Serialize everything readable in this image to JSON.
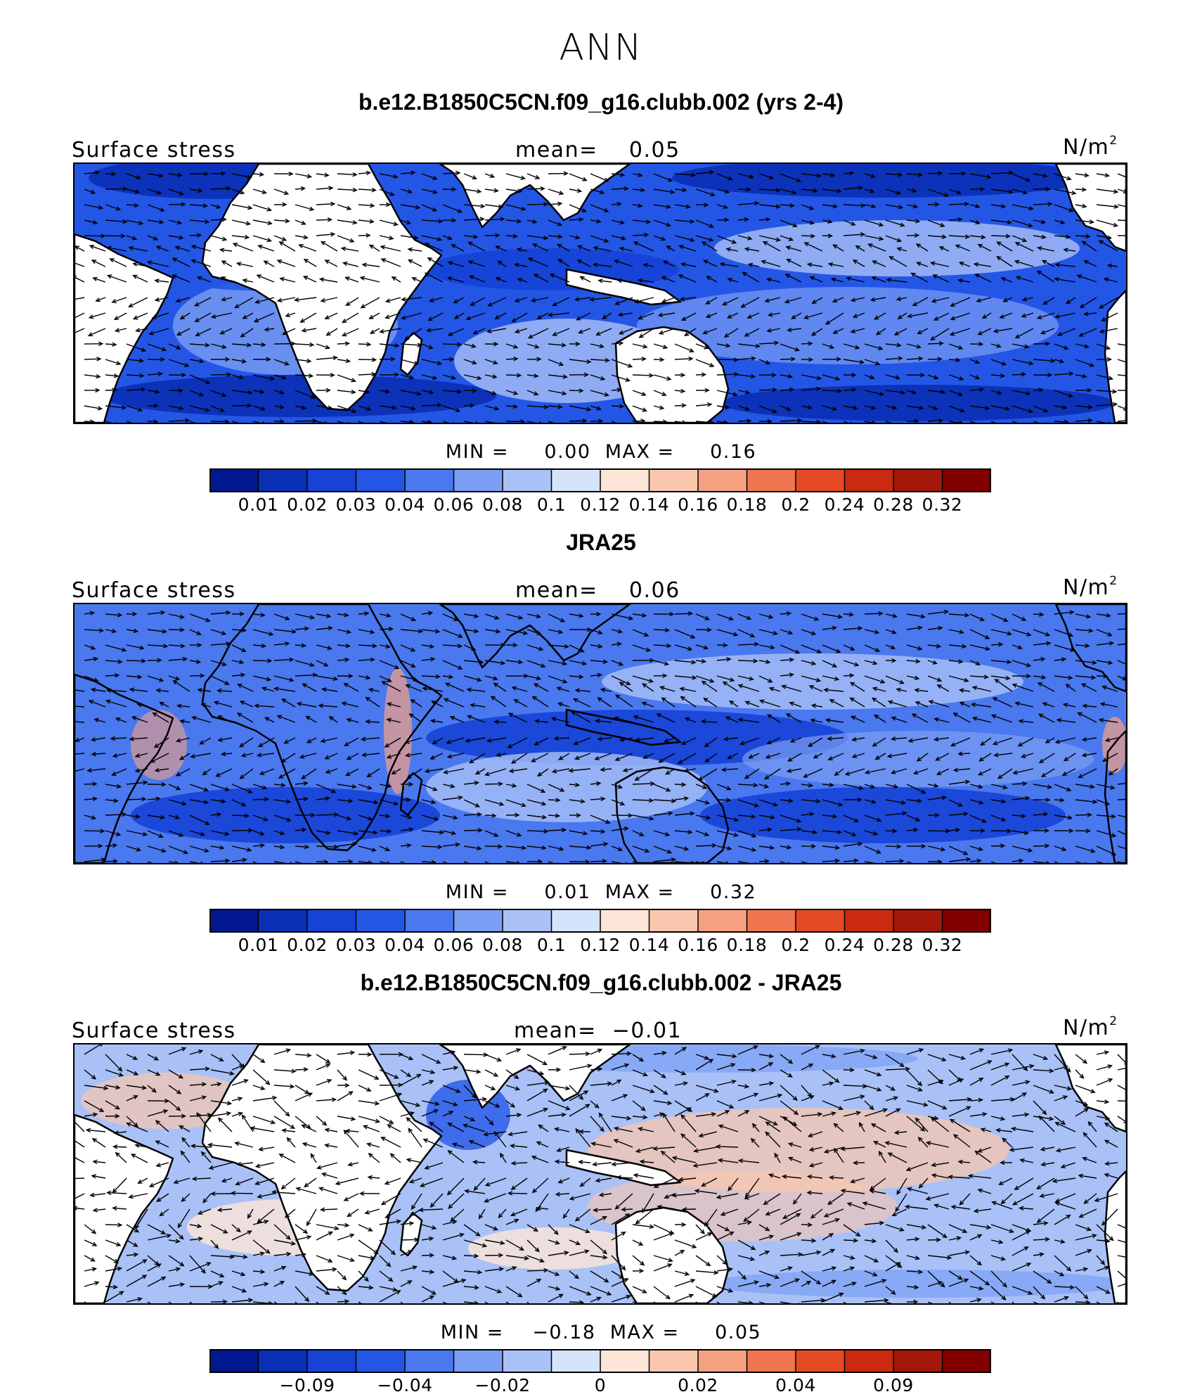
{
  "figure": {
    "title": "ANN"
  },
  "panels": [
    {
      "title": "b.e12.B1850C5CN.f09_g16.clubb.002 (yrs 2-4)",
      "variable": "Surface stress",
      "mean_label": "mean=    0.05",
      "units": "N/m",
      "units_sup": "2",
      "min_label": "MIN =",
      "min_value": "0.00",
      "max_label": "MAX =",
      "max_value": "0.16",
      "colorbar_labels": [
        "0.01",
        "0.02",
        "0.03",
        "0.04",
        "0.06",
        "0.08",
        "0.1",
        "0.12",
        "0.14",
        "0.16",
        "0.18",
        "0.2",
        "0.24",
        "0.28",
        "0.32"
      ]
    },
    {
      "title": "JRA25",
      "variable": "Surface stress",
      "mean_label": "mean=    0.06",
      "units": "N/m",
      "units_sup": "2",
      "min_label": "MIN =",
      "min_value": "0.01",
      "max_label": "MAX =",
      "max_value": "0.32",
      "colorbar_labels": [
        "0.01",
        "0.02",
        "0.03",
        "0.04",
        "0.06",
        "0.08",
        "0.1",
        "0.12",
        "0.14",
        "0.16",
        "0.18",
        "0.2",
        "0.24",
        "0.28",
        "0.32"
      ]
    },
    {
      "title": "b.e12.B1850C5CN.f09_g16.clubb.002 - JRA25",
      "variable": "Surface stress",
      "mean_label": "mean=  −0.01",
      "units": "N/m",
      "units_sup": "2",
      "min_label": "MIN =",
      "min_value": "−0.18",
      "max_label": "MAX =",
      "max_value": "0.05",
      "colorbar_labels": [
        "−0.09",
        "−0.04",
        "−0.02",
        "0",
        "0.02",
        "0.04",
        "0.09"
      ]
    }
  ],
  "chart_data": [
    {
      "type": "heatmap",
      "title": "b.e12.B1850C5CN.f09_g16.clubb.002 (yrs 2-4)",
      "variable": "Surface stress",
      "units": "N/m2",
      "mean": 0.05,
      "min": 0.0,
      "max": 0.16,
      "colorbar_levels": [
        0.01,
        0.02,
        0.03,
        0.04,
        0.06,
        0.08,
        0.1,
        0.12,
        0.14,
        0.16,
        0.18,
        0.2,
        0.24,
        0.28,
        0.32
      ],
      "colors": [
        "#00178f",
        "#0a2fb4",
        "#1642d6",
        "#2456e6",
        "#4a78ee",
        "#7a9ef4",
        "#a9c1f7",
        "#d5e4fb",
        "#fde6d7",
        "#fac6ae",
        "#f6a083",
        "#ef7550",
        "#e64a25",
        "#ca2a10",
        "#a21708",
        "#820000"
      ]
    },
    {
      "type": "heatmap",
      "title": "JRA25",
      "variable": "Surface stress",
      "units": "N/m2",
      "mean": 0.06,
      "min": 0.01,
      "max": 0.32,
      "colorbar_levels": [
        0.01,
        0.02,
        0.03,
        0.04,
        0.06,
        0.08,
        0.1,
        0.12,
        0.14,
        0.16,
        0.18,
        0.2,
        0.24,
        0.28,
        0.32
      ],
      "colors": [
        "#00178f",
        "#0a2fb4",
        "#1642d6",
        "#2456e6",
        "#4a78ee",
        "#7a9ef4",
        "#a9c1f7",
        "#d5e4fb",
        "#fde6d7",
        "#fac6ae",
        "#f6a083",
        "#ef7550",
        "#e64a25",
        "#ca2a10",
        "#a21708",
        "#820000"
      ]
    },
    {
      "type": "heatmap",
      "title": "b.e12.B1850C5CN.f09_g16.clubb.002 - JRA25",
      "variable": "Surface stress",
      "units": "N/m2",
      "mean": -0.01,
      "min": -0.18,
      "max": 0.05,
      "colorbar_tick_labels": [
        "−0.09",
        "−0.04",
        "−0.02",
        "0",
        "0.02",
        "0.04",
        "0.09"
      ],
      "colors": [
        "#00178f",
        "#0a2fb4",
        "#1642d6",
        "#2456e6",
        "#4a78ee",
        "#7a9ef4",
        "#a9c1f7",
        "#d5e4fb",
        "#fde6d7",
        "#fac6ae",
        "#f6a083",
        "#ef7550",
        "#e64a25",
        "#ca2a10",
        "#a21708",
        "#820000"
      ]
    }
  ]
}
